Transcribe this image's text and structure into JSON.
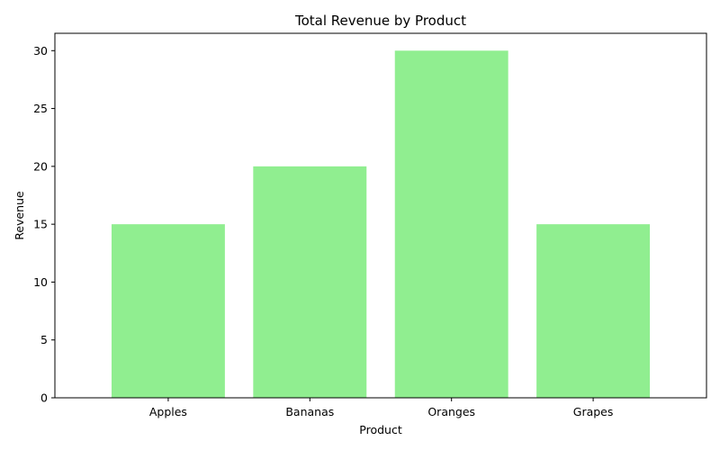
{
  "chart_data": {
    "type": "bar",
    "title": "Total Revenue by Product",
    "xlabel": "Product",
    "ylabel": "Revenue",
    "categories": [
      "Apples",
      "Bananas",
      "Oranges",
      "Grapes"
    ],
    "values": [
      15,
      20,
      30,
      15
    ],
    "ylim": [
      0,
      31.5
    ],
    "yticks": [
      0,
      5,
      10,
      15,
      20,
      25,
      30
    ],
    "grid": false,
    "colors": {
      "bar": "#90ee90",
      "axis": "#000000"
    }
  }
}
